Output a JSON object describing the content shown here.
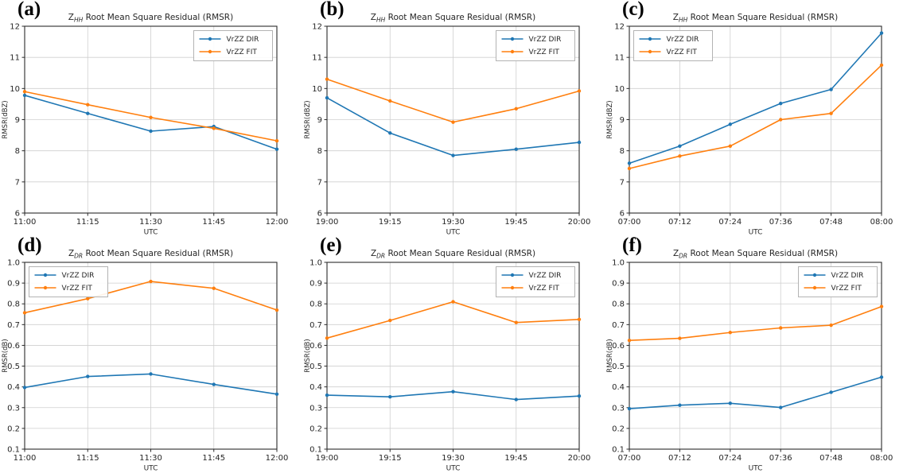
{
  "figure_title": "Root Mean Square Residual (RMSR) comparison panels",
  "colors": {
    "dir_line": "#1f77b4",
    "fit_line": "#ff7f0e",
    "grid": "#cfcfcf",
    "spine": "#2b2b2b",
    "legend_border": "#b3b3b3",
    "background": "#ffffff"
  },
  "legend_labels": {
    "dir": "VrZZ DIR",
    "fit": "VrZZ FIT"
  },
  "chart_data": [
    {
      "id": "a",
      "panel_label": "(a)",
      "type": "line",
      "title": {
        "base": "Z",
        "sub": "HH",
        "rest": " Root Mean Square Residual (RMSR)"
      },
      "xlabel": "UTC",
      "ylabel": "RMSR(dBZ)",
      "x": [
        "11:00",
        "11:15",
        "11:30",
        "11:45",
        "12:00"
      ],
      "ylim": [
        6,
        12
      ],
      "ytick_labels": [
        "6",
        "7",
        "8",
        "9",
        "10",
        "11",
        "12"
      ],
      "grid": true,
      "legend_position": "top-right",
      "series": [
        {
          "name": "VrZZ DIR",
          "color": "#1f77b4",
          "values": [
            9.78,
            9.2,
            8.63,
            8.78,
            8.05
          ]
        },
        {
          "name": "VrZZ FIT",
          "color": "#ff7f0e",
          "values": [
            9.9,
            9.48,
            9.07,
            8.72,
            8.32
          ]
        }
      ]
    },
    {
      "id": "b",
      "panel_label": "(b)",
      "type": "line",
      "title": {
        "base": "Z",
        "sub": "HH",
        "rest": " Root Mean Square Residual (RMSR)"
      },
      "xlabel": "UTC",
      "ylabel": "RMSR(dBZ)",
      "x": [
        "19:00",
        "19:15",
        "19:30",
        "19:45",
        "20:00"
      ],
      "ylim": [
        6,
        12
      ],
      "ytick_labels": [
        "6",
        "7",
        "8",
        "9",
        "10",
        "11",
        "12"
      ],
      "grid": true,
      "legend_position": "top-right",
      "series": [
        {
          "name": "VrZZ DIR",
          "color": "#1f77b4",
          "values": [
            9.7,
            8.57,
            7.85,
            8.05,
            8.27
          ]
        },
        {
          "name": "VrZZ FIT",
          "color": "#ff7f0e",
          "values": [
            10.3,
            9.6,
            8.92,
            9.35,
            9.92
          ]
        }
      ]
    },
    {
      "id": "c",
      "panel_label": "(c)",
      "type": "line",
      "title": {
        "base": "Z",
        "sub": "HH",
        "rest": " Root Mean Square Residual (RMSR)"
      },
      "xlabel": "UTC",
      "ylabel": "RMSR(dBZ)",
      "x": [
        "07:00",
        "07:12",
        "07:24",
        "07:36",
        "07:48",
        "08:00"
      ],
      "ylim": [
        6,
        12
      ],
      "ytick_labels": [
        "6",
        "7",
        "8",
        "9",
        "10",
        "11",
        "12"
      ],
      "grid": true,
      "legend_position": "top-left",
      "series": [
        {
          "name": "VrZZ DIR",
          "color": "#1f77b4",
          "values": [
            7.6,
            8.15,
            8.85,
            9.52,
            9.97,
            11.78
          ]
        },
        {
          "name": "VrZZ FIT",
          "color": "#ff7f0e",
          "values": [
            7.43,
            7.83,
            8.15,
            9.0,
            9.2,
            10.75
          ]
        }
      ]
    },
    {
      "id": "d",
      "panel_label": "(d)",
      "type": "line",
      "title": {
        "base": "Z",
        "sub": "DR",
        "rest": " Root Mean Square Residual (RMSR)"
      },
      "xlabel": "UTC",
      "ylabel": "RMSR(dB)",
      "x": [
        "11:00",
        "11:15",
        "11:30",
        "11:45",
        "12:00"
      ],
      "ylim": [
        0.1,
        1.0
      ],
      "ytick_labels": [
        "0.1",
        "0.2",
        "0.3",
        "0.4",
        "0.5",
        "0.6",
        "0.7",
        "0.8",
        "0.9",
        "1.0"
      ],
      "grid": true,
      "legend_position": "top-left",
      "series": [
        {
          "name": "VrZZ DIR",
          "color": "#1f77b4",
          "values": [
            0.397,
            0.45,
            0.462,
            0.412,
            0.365
          ]
        },
        {
          "name": "VrZZ FIT",
          "color": "#ff7f0e",
          "values": [
            0.757,
            0.825,
            0.908,
            0.875,
            0.77
          ]
        }
      ]
    },
    {
      "id": "e",
      "panel_label": "(e)",
      "type": "line",
      "title": {
        "base": "Z",
        "sub": "DR",
        "rest": " Root Mean Square Residual (RMSR)"
      },
      "xlabel": "UTC",
      "ylabel": "RMSR(dB)",
      "x": [
        "19:00",
        "19:15",
        "19:30",
        "19:45",
        "20:00"
      ],
      "ylim": [
        0.1,
        1.0
      ],
      "ytick_labels": [
        "0.1",
        "0.2",
        "0.3",
        "0.4",
        "0.5",
        "0.6",
        "0.7",
        "0.8",
        "0.9",
        "1.0"
      ],
      "grid": true,
      "legend_position": "top-right",
      "series": [
        {
          "name": "VrZZ DIR",
          "color": "#1f77b4",
          "values": [
            0.36,
            0.352,
            0.377,
            0.339,
            0.356
          ]
        },
        {
          "name": "VrZZ FIT",
          "color": "#ff7f0e",
          "values": [
            0.635,
            0.72,
            0.81,
            0.71,
            0.725
          ]
        }
      ]
    },
    {
      "id": "f",
      "panel_label": "(f)",
      "type": "line",
      "title": {
        "base": "Z",
        "sub": "DR",
        "rest": " Root Mean Square Residual (RMSR)"
      },
      "xlabel": "UTC",
      "ylabel": "RMSR(dB)",
      "x": [
        "07:00",
        "07:12",
        "07:24",
        "07:36",
        "07:48",
        "08:00"
      ],
      "ylim": [
        0.1,
        1.0
      ],
      "ytick_labels": [
        "0.1",
        "0.2",
        "0.3",
        "0.4",
        "0.5",
        "0.6",
        "0.7",
        "0.8",
        "0.9",
        "1.0"
      ],
      "grid": true,
      "legend_position": "top-right",
      "series": [
        {
          "name": "VrZZ DIR",
          "color": "#1f77b4",
          "values": [
            0.295,
            0.312,
            0.321,
            0.301,
            0.374,
            0.447
          ]
        },
        {
          "name": "VrZZ FIT",
          "color": "#ff7f0e",
          "values": [
            0.624,
            0.634,
            0.662,
            0.684,
            0.697,
            0.787
          ]
        }
      ]
    }
  ]
}
